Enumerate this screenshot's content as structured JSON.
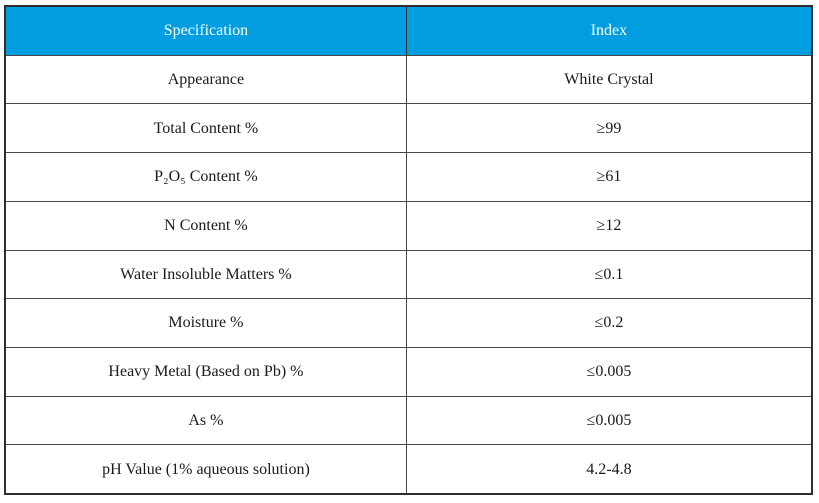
{
  "table": {
    "header": {
      "spec": "Specification",
      "index": "Index"
    },
    "rows": [
      {
        "spec": "Appearance",
        "index": "White Crystal"
      },
      {
        "spec": "Total Content %",
        "index": "≥99"
      },
      {
        "spec": "P₂O₅ Content %",
        "index": "≥61"
      },
      {
        "spec": "N Content %",
        "index": "≥12"
      },
      {
        "spec": "Water Insoluble Matters %",
        "index": "≤0.1"
      },
      {
        "spec": "Moisture %",
        "index": "≤0.2"
      },
      {
        "spec": "Heavy Metal (Based on Pb) %",
        "index": "≤0.005"
      },
      {
        "spec": "As %",
        "index": "≤0.005"
      },
      {
        "spec": "pH Value (1% aqueous solution)",
        "index": "4.2-4.8"
      }
    ],
    "colors": {
      "header_bg": "#009EE0",
      "header_text": "#FFFFFF",
      "border": "#474747",
      "outer_border": "#2E2E2E",
      "body_text": "#1A1A1A"
    }
  }
}
